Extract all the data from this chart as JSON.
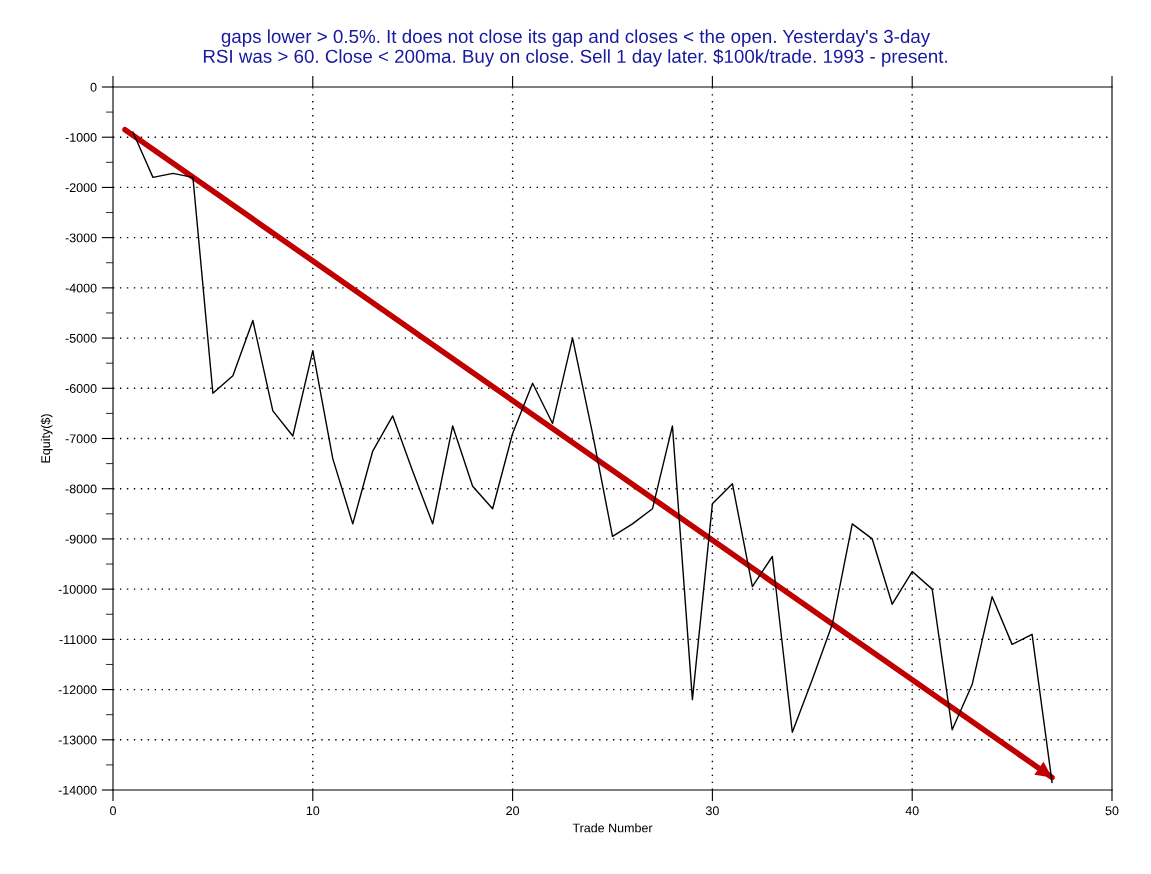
{
  "chart_data": {
    "type": "line",
    "title": "gaps lower > 0.5%. It does not close its gap and closes < the open. Yesterday's 3-day\nRSI was > 60. Close < 200ma. Buy on close. Sell 1 day later. $100k/trade. 1993 - present.",
    "xlabel": "Trade Number",
    "ylabel": "Equity($)",
    "x": [
      1,
      2,
      3,
      4,
      5,
      6,
      7,
      8,
      9,
      10,
      11,
      12,
      13,
      14,
      15,
      16,
      17,
      18,
      19,
      20,
      21,
      22,
      23,
      24,
      25,
      26,
      27,
      28,
      29,
      30,
      31,
      32,
      33,
      34,
      35,
      36,
      37,
      38,
      39,
      40,
      41,
      42,
      43,
      44,
      45,
      46,
      47
    ],
    "series": [
      {
        "color": "#000000",
        "values": [
          -900,
          -1800,
          -1720,
          -1800,
          -6100,
          -5750,
          -4650,
          -6450,
          -6950,
          -5250,
          -7400,
          -8700,
          -7250,
          -6550,
          -7650,
          -8700,
          -6750,
          -7950,
          -8400,
          -6900,
          -5900,
          -6700,
          -5000,
          -6900,
          -8950,
          -8700,
          -8400,
          -6750,
          -12200,
          -8300,
          -7900,
          -9950,
          -9350,
          -12850,
          -11800,
          -10700,
          -8700,
          -9000,
          -10300,
          -9650,
          -10000,
          -12800,
          -11900,
          -10150,
          -11100,
          -10900,
          -13850
        ]
      },
      {
        "type": "line",
        "color": "#c00000",
        "x": [
          0.6,
          47
        ],
        "values": [
          -850,
          -13750
        ]
      }
    ],
    "xlim": [
      0,
      50
    ],
    "ylim": [
      -14000,
      0
    ],
    "xticks": [
      0,
      10,
      20,
      30,
      40,
      50
    ],
    "yticks": [
      0,
      {
        "value": -500,
        "label": null
      },
      -1000,
      {
        "value": -1500,
        "label": null
      },
      -2000,
      {
        "value": -2500,
        "label": null
      },
      -3000,
      {
        "value": -3500,
        "label": null
      },
      -4000,
      {
        "value": -4500,
        "label": null
      },
      -5000,
      {
        "value": -5500,
        "label": null
      },
      -6000,
      {
        "value": -6500,
        "label": null
      },
      -7000,
      {
        "value": -7500,
        "label": null
      },
      -8000,
      {
        "value": -8500,
        "label": null
      },
      -9000,
      {
        "value": -9500,
        "label": null
      },
      -10000,
      {
        "value": -10500,
        "label": null
      },
      -11000,
      {
        "value": -11500,
        "label": null
      },
      -12000,
      {
        "value": -12500,
        "label": null
      },
      -13000,
      {
        "value": -13500,
        "label": null
      },
      -14000
    ],
    "grid": true,
    "line_style": "solid",
    "marker": "none"
  }
}
